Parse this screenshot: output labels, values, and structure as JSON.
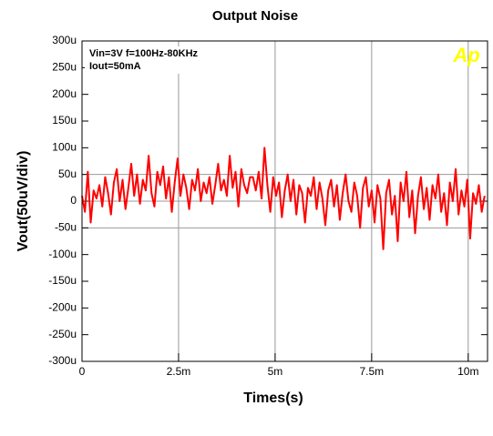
{
  "chart_data": {
    "type": "line",
    "title": "Output Noise",
    "x_label": "Times(s)",
    "y_label": "Vout(50uV/div)",
    "annotations": [
      "Vin=3V f=100Hz-80KHz",
      "Iout=50mA"
    ],
    "logo": "Ap",
    "color": "#ff0000",
    "grid": true,
    "xlim": [
      0,
      10.5
    ],
    "ylim": [
      -300,
      300
    ],
    "xticks": [
      0,
      {
        "value": 2.5,
        "label": "2.5m"
      },
      {
        "value": 5,
        "label": "5m"
      },
      {
        "value": 7.5,
        "label": "7.5m"
      },
      {
        "value": 10,
        "label": "10m"
      }
    ],
    "yticks": [
      {
        "value": 300,
        "label": "300u"
      },
      {
        "value": 250,
        "label": "250u"
      },
      {
        "value": 200,
        "label": "200u"
      },
      {
        "value": 150,
        "label": "150u"
      },
      {
        "value": 100,
        "label": "100u"
      },
      {
        "value": 50,
        "label": "50u"
      },
      0,
      {
        "value": -50,
        "label": "-50u"
      },
      {
        "value": -100,
        "label": "-100u"
      },
      {
        "value": -150,
        "label": "-150u"
      },
      {
        "value": -200,
        "label": "-200u"
      },
      {
        "value": -250,
        "label": "-250u"
      },
      {
        "value": -300,
        "label": "-300u"
      }
    ],
    "x": [
      0,
      0.075,
      0.15,
      0.225,
      0.3,
      0.375,
      0.45,
      0.525,
      0.6,
      0.675,
      0.75,
      0.825,
      0.9,
      0.975,
      1.05,
      1.125,
      1.2,
      1.275,
      1.35,
      1.425,
      1.5,
      1.575,
      1.65,
      1.725,
      1.8,
      1.875,
      1.95,
      2.025,
      2.1,
      2.175,
      2.25,
      2.325,
      2.4,
      2.475,
      2.55,
      2.625,
      2.7,
      2.775,
      2.85,
      2.925,
      3,
      3.075,
      3.15,
      3.225,
      3.3,
      3.375,
      3.45,
      3.525,
      3.6,
      3.675,
      3.75,
      3.825,
      3.9,
      3.975,
      4.05,
      4.125,
      4.2,
      4.275,
      4.35,
      4.425,
      4.5,
      4.575,
      4.65,
      4.725,
      4.8,
      4.875,
      4.95,
      5.025,
      5.1,
      5.175,
      5.25,
      5.325,
      5.4,
      5.475,
      5.55,
      5.625,
      5.7,
      5.775,
      5.85,
      5.925,
      6,
      6.075,
      6.15,
      6.225,
      6.3,
      6.375,
      6.45,
      6.525,
      6.6,
      6.675,
      6.75,
      6.825,
      6.9,
      6.975,
      7.05,
      7.125,
      7.2,
      7.275,
      7.35,
      7.425,
      7.5,
      7.575,
      7.65,
      7.725,
      7.8,
      7.875,
      7.95,
      8.025,
      8.1,
      8.175,
      8.25,
      8.325,
      8.4,
      8.475,
      8.55,
      8.625,
      8.7,
      8.775,
      8.85,
      8.925,
      9,
      9.075,
      9.15,
      9.225,
      9.3,
      9.375,
      9.45,
      9.525,
      9.6,
      9.675,
      9.75,
      9.825,
      9.9,
      9.975,
      10.05,
      10.125,
      10.2,
      10.275,
      10.35,
      10.425
    ],
    "values": [
      10,
      -20,
      55,
      -40,
      20,
      5,
      30,
      -10,
      45,
      15,
      -25,
      35,
      60,
      0,
      40,
      -15,
      25,
      70,
      10,
      50,
      -5,
      40,
      20,
      85,
      15,
      -10,
      55,
      30,
      65,
      5,
      45,
      -20,
      35,
      80,
      10,
      50,
      25,
      -15,
      40,
      20,
      60,
      0,
      35,
      15,
      45,
      -5,
      30,
      70,
      20,
      40,
      10,
      85,
      25,
      55,
      -10,
      60,
      30,
      15,
      45,
      45,
      20,
      55,
      5,
      100,
      30,
      -20,
      45,
      10,
      35,
      -30,
      20,
      50,
      0,
      40,
      -25,
      30,
      15,
      -40,
      25,
      10,
      45,
      -15,
      35,
      5,
      -45,
      20,
      40,
      -10,
      30,
      -35,
      15,
      50,
      0,
      -20,
      35,
      10,
      -50,
      25,
      45,
      -10,
      20,
      -40,
      30,
      5,
      -90,
      15,
      40,
      -25,
      10,
      -75,
      35,
      0,
      55,
      -30,
      20,
      -60,
      10,
      45,
      -15,
      25,
      -35,
      30,
      5,
      50,
      -20,
      15,
      -45,
      35,
      0,
      60,
      -25,
      20,
      -10,
      40,
      -70,
      15,
      -5,
      30,
      -20,
      10
    ]
  }
}
